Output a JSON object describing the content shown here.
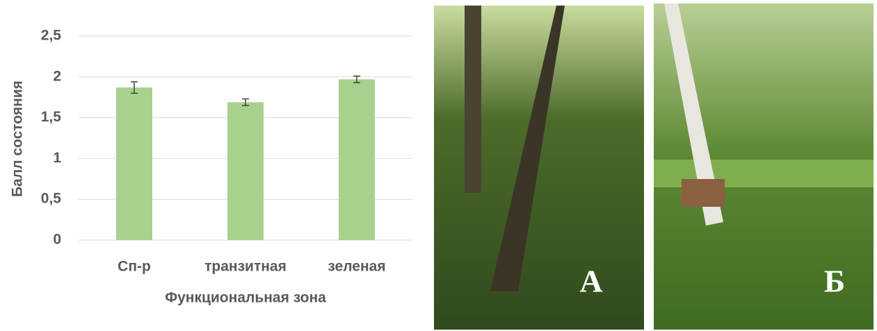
{
  "chart_data": {
    "type": "bar",
    "categories": [
      "Сп-р",
      "транзитная",
      "зеленая"
    ],
    "values": [
      1.87,
      1.69,
      1.97
    ],
    "errors": [
      0.07,
      0.04,
      0.04
    ],
    "color": "#a9d18e",
    "ylim": [
      0,
      2.5
    ],
    "yticks": [
      0,
      {
        "value": 0.5,
        "label": "0,5"
      },
      1,
      {
        "value": 1.5,
        "label": "1,5"
      },
      2,
      {
        "value": 2.5,
        "label": "2,5"
      }
    ],
    "grid": true,
    "xlabel": "Функциональная зона",
    "ylabel": "Балл состояния"
  },
  "photos": [
    {
      "label": "А"
    },
    {
      "label": "Б"
    }
  ]
}
